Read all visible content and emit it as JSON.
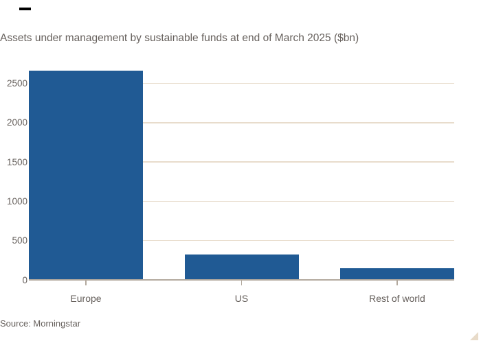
{
  "title": "Assets under management by sustainable funds at end of March 2025 ($bn)",
  "source": "Source: Morningstar",
  "colors": {
    "bar": "#205a94",
    "text": "#66605c",
    "gridline": "#e8dccc",
    "baseline": "#b3a99e",
    "background": "#ffffff",
    "top_mark": "#000000",
    "corner_triangle": "#e8dbc9"
  },
  "chart_data": {
    "type": "bar",
    "categories": [
      "Europe",
      "US",
      "Rest of world"
    ],
    "values": [
      2660,
      320,
      150
    ],
    "title": "Assets under management by sustainable funds at end of March 2025 ($bn)",
    "xlabel": "",
    "ylabel": "",
    "ylim": [
      0,
      2700
    ],
    "yticks": [
      0,
      500,
      1000,
      1500,
      2000,
      2500
    ],
    "grid": true,
    "legend": false,
    "legend_position": "none",
    "source": "Source: Morningstar"
  }
}
